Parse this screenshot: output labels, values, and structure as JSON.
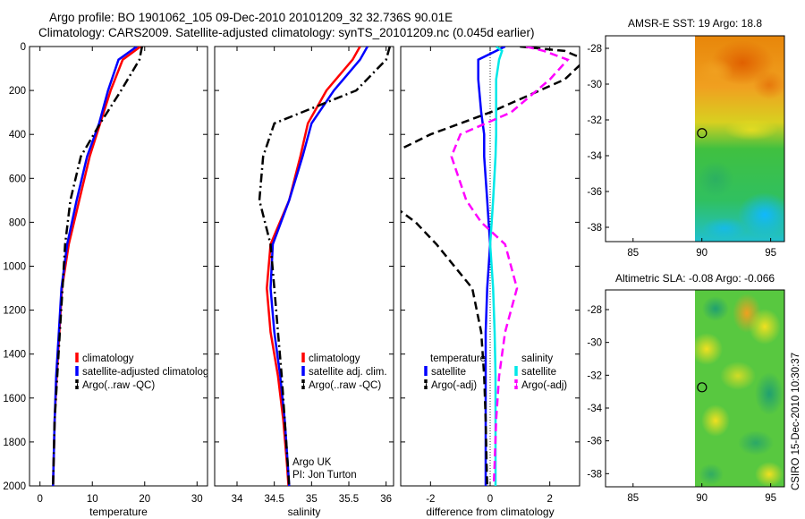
{
  "title": {
    "line1": "Argo profile: BO 1901062_105 09-Dec-2010 20101209_32 32.736S 90.01E",
    "line2": "Climatology: CARS2009. Satellite-adjusted climatology: synTS_20101209.nc (0.045d earlier)"
  },
  "colors": {
    "climatology": "#ff0000",
    "satellite": "#0000ff",
    "argo": "#000000",
    "sal_satellite": "#00e8e8",
    "sal_argo": "#ff00ff"
  },
  "chart_data": [
    {
      "name": "temperature",
      "type": "line",
      "xlabel": "temperature",
      "xlim": [
        -2,
        32
      ],
      "ylim": [
        2000,
        0
      ],
      "xticks": [
        0,
        10,
        20,
        30
      ],
      "yticks": [
        0,
        200,
        400,
        600,
        800,
        1000,
        1200,
        1400,
        1600,
        1800,
        2000
      ],
      "depth": [
        0,
        60,
        200,
        350,
        500,
        700,
        900,
        1100,
        1300,
        1500,
        1700,
        1900,
        2000
      ],
      "series": [
        {
          "name": "climatology",
          "style": "solid",
          "values": [
            19.2,
            15.8,
            13.5,
            11.5,
            9.5,
            7.5,
            5.5,
            4.2,
            3.7,
            3.2,
            2.8,
            2.6,
            2.5
          ]
        },
        {
          "name": "satellite-adjusted climatology",
          "style": "solid",
          "values": [
            18.5,
            15.0,
            13.0,
            11.3,
            9.0,
            7.0,
            5.2,
            4.1,
            3.6,
            3.1,
            2.8,
            2.6,
            2.5
          ]
        },
        {
          "name": "Argo(..raw -QC)",
          "style": "dashdot",
          "values": [
            19.5,
            19.0,
            15.5,
            11.5,
            7.8,
            5.8,
            4.8,
            4.3,
            3.8,
            3.3,
            2.8,
            2.6,
            2.5
          ]
        }
      ],
      "legend": {
        "entries": [
          "climatology",
          "satellite-adjusted climatology",
          "Argo(..raw -QC)"
        ],
        "labels": [
          "climatology",
          "satellite-adjusted climatolog",
          "Argo(..raw -QC)"
        ],
        "placement": "lower-right"
      }
    },
    {
      "name": "salinity",
      "type": "line",
      "xlabel": "salinity",
      "xlim": [
        33.7,
        36.1
      ],
      "ylim": [
        2000,
        0
      ],
      "xticks": [
        34,
        34.5,
        35,
        35.5,
        36
      ],
      "xticklabels": [
        "34",
        "34.5",
        "35",
        "35.5",
        "36"
      ],
      "depth": [
        0,
        60,
        200,
        350,
        500,
        700,
        900,
        1100,
        1300,
        1500,
        1700,
        1900,
        2000
      ],
      "series": [
        {
          "name": "climatology",
          "style": "solid",
          "values": [
            35.65,
            35.55,
            35.2,
            34.95,
            34.85,
            34.7,
            34.45,
            34.4,
            34.45,
            34.55,
            34.62,
            34.67,
            34.69
          ]
        },
        {
          "name": "satellite adj. clim.",
          "style": "solid",
          "values": [
            35.75,
            35.65,
            35.3,
            35.0,
            34.88,
            34.7,
            34.48,
            34.45,
            34.5,
            34.58,
            34.64,
            34.68,
            34.7
          ]
        },
        {
          "name": "Argo(..raw -QC)",
          "style": "dashdot",
          "values": [
            36.05,
            36.0,
            35.6,
            34.5,
            34.35,
            34.3,
            34.45,
            34.5,
            34.55,
            34.6,
            34.64,
            34.68,
            34.7
          ]
        }
      ],
      "legend": {
        "entries": [
          "climatology",
          "satellite adj. clim.",
          "Argo(..raw -QC)"
        ],
        "placement": "lower-right"
      },
      "annotation": [
        "Argo UK",
        "PI: Jon Turton"
      ]
    },
    {
      "name": "difference",
      "type": "line",
      "xlabel": "difference from climatology",
      "xlim": [
        -3,
        3
      ],
      "ylim": [
        2000,
        0
      ],
      "xticks": [
        -2,
        0,
        2
      ],
      "depth": [
        0,
        20,
        60,
        150,
        300,
        400,
        500,
        700,
        800,
        900,
        1100,
        1300,
        1500,
        1700,
        1900,
        2000
      ],
      "series": [
        {
          "name": "temperature satellite",
          "style": "solid",
          "color": "satellite",
          "values": [
            0.5,
            0.2,
            -0.4,
            -0.4,
            -0.3,
            -0.2,
            -0.2,
            -0.1,
            -0.05,
            0.0,
            -0.1,
            -0.15,
            -0.15,
            -0.15,
            -0.15,
            -0.15
          ]
        },
        {
          "name": "temperature Argo(-adj)",
          "style": "dashed",
          "color": "argo",
          "values": [
            1.0,
            2.5,
            3.2,
            2.5,
            0.0,
            -2.0,
            -3.5,
            null,
            null,
            null,
            null,
            null,
            null,
            null,
            null,
            null
          ]
        },
        {
          "name": "temperature Argo(-adj) deep",
          "style": "dashed",
          "color": "argo",
          "values": [
            null,
            null,
            null,
            null,
            null,
            null,
            null,
            -3.5,
            -2.5,
            -1.8,
            -0.6,
            -0.3,
            -0.2,
            -0.15,
            -0.12,
            -0.1
          ]
        },
        {
          "name": "salinity satellite",
          "style": "solid",
          "color": "sal_satellite",
          "values": [
            0.2,
            0.4,
            0.3,
            0.2,
            0.2,
            0.2,
            0.18,
            0.1,
            0.05,
            0.0,
            0.1,
            0.15,
            0.18,
            0.18,
            0.18,
            0.18
          ]
        },
        {
          "name": "salinity Argo(-adj)",
          "style": "dashed",
          "color": "sal_argo",
          "values": [
            1.2,
            1.8,
            2.6,
            2.0,
            0.7,
            -1.0,
            -1.3,
            -0.8,
            -0.3,
            0.5,
            0.9,
            0.5,
            0.3,
            0.2,
            0.15,
            0.12
          ]
        }
      ],
      "legend": {
        "groups": [
          "temperature",
          "salinity"
        ],
        "entries": [
          [
            "satellite",
            "Argo(-adj)"
          ],
          [
            "satellite",
            "Argo(-adj)"
          ]
        ],
        "placement": "lower"
      }
    },
    {
      "name": "sst-map",
      "type": "heatmap",
      "title": "AMSR-E SST: 19 Argo: 18.8",
      "xlim": [
        83,
        96
      ],
      "ylim": [
        -38.8,
        -27.3
      ],
      "xticks": [
        85,
        90,
        95
      ],
      "yticks": [
        -28,
        -30,
        -32,
        -34,
        -36,
        -38
      ],
      "data_x_start": 90,
      "marker": {
        "lon": 90.01,
        "lat": -32.736
      }
    },
    {
      "name": "sla-map",
      "type": "heatmap",
      "title": "Altimetric SLA: -0.08 Argo: -0.066",
      "xlim": [
        83,
        96
      ],
      "ylim": [
        -38.8,
        -26.8
      ],
      "xticks": [
        85,
        90,
        95
      ],
      "yticks": [
        -28,
        -30,
        -32,
        -34,
        -36,
        -38
      ],
      "data_x_start": 90,
      "marker": {
        "lon": 90.01,
        "lat": -32.736
      }
    }
  ],
  "credit": "CSIRO 15-Dec-2010 10:30:37"
}
